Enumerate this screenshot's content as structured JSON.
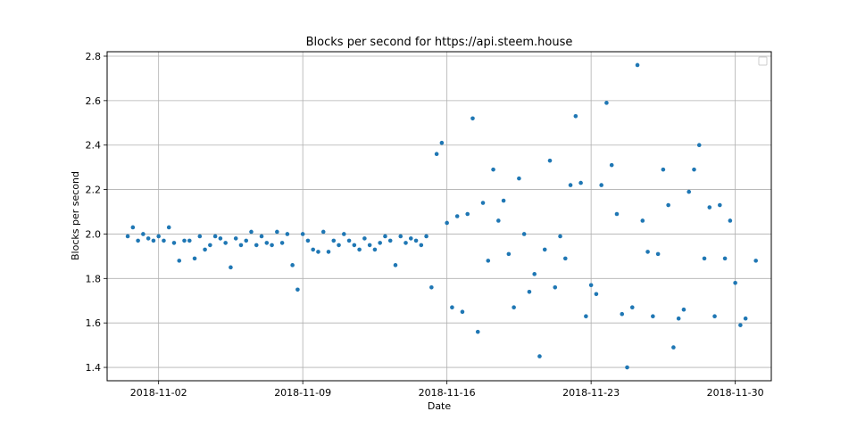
{
  "chart_data": {
    "type": "scatter",
    "title": "Blocks per second for https://api.steem.house",
    "xlabel": "Date",
    "ylabel": "Blocks per second",
    "x_ticks": [
      "2018-11-02",
      "2018-11-09",
      "2018-11-16",
      "2018-11-23",
      "2018-11-30"
    ],
    "y_ticks": [
      "1.4",
      "1.6",
      "1.8",
      "2.0",
      "2.2",
      "2.4",
      "2.6",
      "2.8"
    ],
    "xlim": [
      "2018-10-30T12:00",
      "2018-12-01T18:00"
    ],
    "ylim": [
      1.34,
      2.82
    ],
    "grid": true,
    "legend": "top-right (empty)",
    "marker_color": "#1f77b4",
    "series": [
      {
        "x": [
          "2018-10-31T12:00",
          "2018-10-31T18:00",
          "2018-11-01T00:00",
          "2018-11-01T06:00",
          "2018-11-01T12:00",
          "2018-11-01T18:00",
          "2018-11-02T00:00",
          "2018-11-02T06:00",
          "2018-11-02T12:00",
          "2018-11-02T18:00",
          "2018-11-03T00:00",
          "2018-11-03T06:00",
          "2018-11-03T12:00",
          "2018-11-03T18:00",
          "2018-11-04T00:00",
          "2018-11-04T06:00",
          "2018-11-04T12:00",
          "2018-11-04T18:00",
          "2018-11-05T00:00",
          "2018-11-05T06:00",
          "2018-11-05T12:00",
          "2018-11-05T18:00",
          "2018-11-06T00:00",
          "2018-11-06T06:00",
          "2018-11-06T12:00",
          "2018-11-06T18:00",
          "2018-11-07T00:00",
          "2018-11-07T06:00",
          "2018-11-07T12:00",
          "2018-11-07T18:00",
          "2018-11-08T00:00",
          "2018-11-08T06:00",
          "2018-11-08T12:00",
          "2018-11-08T18:00",
          "2018-11-09T00:00",
          "2018-11-09T06:00",
          "2018-11-09T12:00",
          "2018-11-09T18:00",
          "2018-11-10T00:00",
          "2018-11-10T06:00",
          "2018-11-10T12:00",
          "2018-11-10T18:00",
          "2018-11-11T00:00",
          "2018-11-11T06:00",
          "2018-11-11T12:00",
          "2018-11-11T18:00",
          "2018-11-12T00:00",
          "2018-11-12T06:00",
          "2018-11-12T12:00",
          "2018-11-12T18:00",
          "2018-11-13T00:00",
          "2018-11-13T06:00",
          "2018-11-13T12:00",
          "2018-11-13T18:00",
          "2018-11-14T00:00",
          "2018-11-14T06:00",
          "2018-11-14T12:00",
          "2018-11-14T18:00",
          "2018-11-15T00:00",
          "2018-11-15T06:00",
          "2018-11-15T12:00",
          "2018-11-15T18:00",
          "2018-11-16T00:00",
          "2018-11-16T06:00",
          "2018-11-16T12:00",
          "2018-11-16T18:00",
          "2018-11-17T00:00",
          "2018-11-17T06:00",
          "2018-11-17T12:00",
          "2018-11-17T18:00",
          "2018-11-18T00:00",
          "2018-11-18T06:00",
          "2018-11-18T12:00",
          "2018-11-18T18:00",
          "2018-11-19T00:00",
          "2018-11-19T06:00",
          "2018-11-19T12:00",
          "2018-11-19T18:00",
          "2018-11-20T00:00",
          "2018-11-20T06:00",
          "2018-11-20T12:00",
          "2018-11-20T18:00",
          "2018-11-21T00:00",
          "2018-11-21T06:00",
          "2018-11-21T12:00",
          "2018-11-21T18:00",
          "2018-11-22T00:00",
          "2018-11-22T06:00",
          "2018-11-22T12:00",
          "2018-11-22T18:00",
          "2018-11-23T00:00",
          "2018-11-23T06:00",
          "2018-11-23T12:00",
          "2018-11-23T18:00",
          "2018-11-24T00:00",
          "2018-11-24T06:00",
          "2018-11-24T12:00",
          "2018-11-24T18:00",
          "2018-11-25T00:00",
          "2018-11-25T06:00",
          "2018-11-25T12:00",
          "2018-11-25T18:00",
          "2018-11-26T00:00",
          "2018-11-26T06:00",
          "2018-11-26T12:00",
          "2018-11-26T18:00",
          "2018-11-27T00:00",
          "2018-11-27T06:00",
          "2018-11-27T12:00",
          "2018-11-27T18:00",
          "2018-11-28T00:00",
          "2018-11-28T06:00",
          "2018-11-28T12:00",
          "2018-11-28T18:00",
          "2018-11-29T00:00",
          "2018-11-29T06:00",
          "2018-11-29T12:00",
          "2018-11-29T18:00",
          "2018-11-30T00:00",
          "2018-11-30T06:00",
          "2018-11-30T12:00",
          "2018-11-31T00:00"
        ],
        "y": [
          1.99,
          2.03,
          1.97,
          2.0,
          1.98,
          1.97,
          1.99,
          1.97,
          2.03,
          1.96,
          1.88,
          1.97,
          1.97,
          1.89,
          1.99,
          1.93,
          1.95,
          1.99,
          1.98,
          1.96,
          1.85,
          1.98,
          1.95,
          1.97,
          2.01,
          1.95,
          1.99,
          1.96,
          1.95,
          2.01,
          1.96,
          2.0,
          1.86,
          1.75,
          2.0,
          1.97,
          1.93,
          1.92,
          2.01,
          1.92,
          1.97,
          1.95,
          2.0,
          1.97,
          1.95,
          1.93,
          1.98,
          1.95,
          1.93,
          1.96,
          1.99,
          1.97,
          1.86,
          1.99,
          1.96,
          1.98,
          1.97,
          1.95,
          1.99,
          1.76,
          2.36,
          2.41,
          2.05,
          1.67,
          2.08,
          1.65,
          2.09,
          2.52,
          1.56,
          2.14,
          1.88,
          2.29,
          2.06,
          2.15,
          1.91,
          1.67,
          2.25,
          2.0,
          1.74,
          1.82,
          1.45,
          1.93,
          2.33,
          1.76,
          1.99,
          1.89,
          2.22,
          2.53,
          2.23,
          1.63,
          1.77,
          1.73,
          2.22,
          2.59,
          2.31,
          2.09,
          1.64,
          1.4,
          1.67,
          2.76,
          2.06,
          1.92,
          1.63,
          1.91,
          2.29,
          2.13,
          1.49,
          1.62,
          1.66,
          2.19,
          2.29,
          2.4,
          1.89,
          2.12,
          1.63,
          2.13,
          1.89,
          2.06,
          1.78,
          1.59,
          1.62,
          1.88
        ]
      }
    ]
  }
}
